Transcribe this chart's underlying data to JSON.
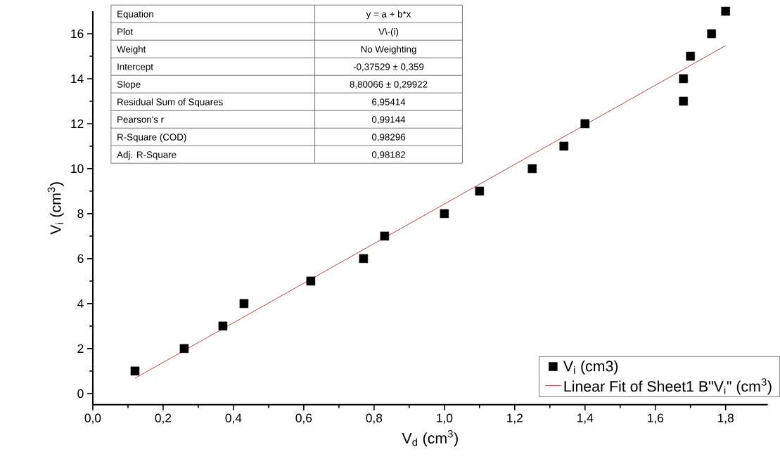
{
  "chart_data": {
    "type": "scatter",
    "xlabel": "V$_{d}$ (cm$^{3}$)",
    "ylabel": "V$_{i}$ (cm$^{3}$)",
    "xlim": [
      0,
      1.92
    ],
    "ylim": [
      -0.5,
      17
    ],
    "xticks": [
      {
        "value": 0,
        "label": "0,0"
      },
      {
        "value": 0.2,
        "label": "0,2"
      },
      {
        "value": 0.4,
        "label": "0,4"
      },
      {
        "value": 0.6,
        "label": "0,6"
      },
      {
        "value": 0.8,
        "label": "0,8"
      },
      {
        "value": 1.0,
        "label": "1,0"
      },
      {
        "value": 1.2,
        "label": "1,2"
      },
      {
        "value": 1.4,
        "label": "1,4"
      },
      {
        "value": 1.6,
        "label": "1,6"
      },
      {
        "value": 1.8,
        "label": "1,8"
      }
    ],
    "yticks": [
      0,
      2,
      4,
      6,
      8,
      10,
      12,
      14,
      16
    ],
    "series": [
      {
        "name": "V$_{i}$ (cm3)",
        "marker": "square",
        "color": "#000000",
        "x": [
          0.12,
          0.26,
          0.37,
          0.43,
          0.62,
          0.77,
          0.83,
          1.0,
          1.1,
          1.25,
          1.34,
          1.4,
          1.68,
          1.68,
          1.7,
          1.76,
          1.8
        ],
        "values": [
          1,
          2,
          3,
          4,
          5,
          6,
          7,
          8,
          9,
          10,
          11,
          12,
          13,
          14,
          15,
          16,
          17
        ]
      },
      {
        "name": "Linear Fit of Sheet1 B\"V$_{i}$\" (cm$^{3}$)",
        "type": "line",
        "color": "#b03a3a",
        "x": [
          0.12,
          1.8
        ],
        "values": [
          0.68,
          15.47
        ]
      }
    ],
    "legend": "bottom right",
    "grid": false,
    "annotations": [
      "Equation",
      "y = a + b*x",
      "Plot",
      "V\\-(i)",
      "Weight",
      "No Weighting",
      "Intercept",
      "-0,37529 ± 0,359",
      "Slope",
      "8,80066 ± 0,29922",
      "Residual Sum of Squares",
      "6,95414",
      "Pearson's r",
      "0,99144",
      "R-Square (COD)",
      "0,98296",
      "Adj. R-Square",
      "0,98182"
    ]
  }
}
